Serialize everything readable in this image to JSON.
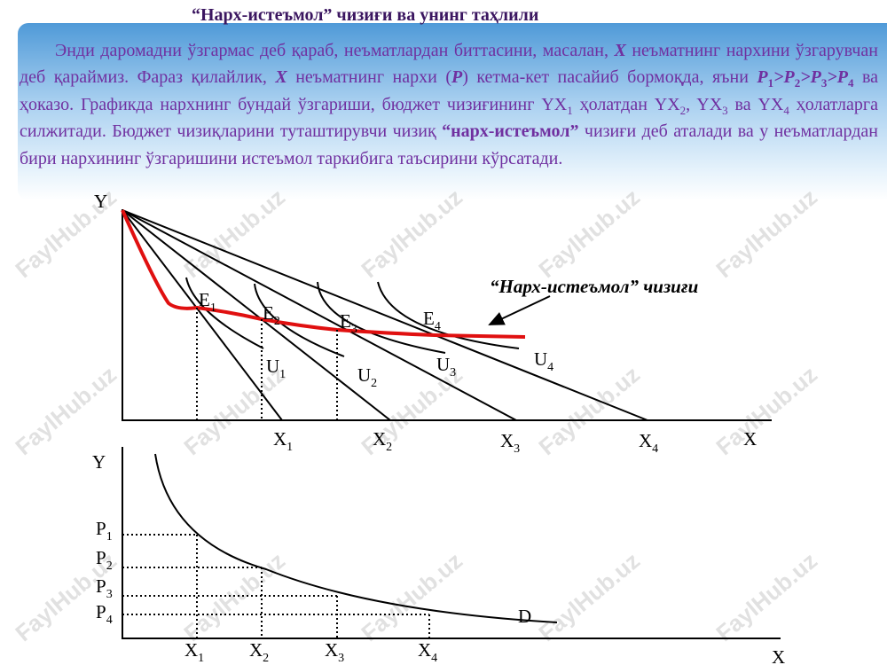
{
  "header": {
    "title": "“Нарх-истеъмол” чизиғи ва унинг таҳлили"
  },
  "paragraph": {
    "runs": [
      "Энди даромадни ўзгармас деб қараб, неъматлардан биттасини, масалан, ",
      "X",
      " неъматнинг нархини ўзгарувчан деб қараймиз. Фараз қилайлик, ",
      "X",
      " неъматнинг нархи (",
      "P",
      ") кетма-кет пасайиб бормоқда, яъни ",
      "P",
      "1",
      ">P",
      "2",
      ">P",
      "3",
      ">P",
      "4",
      " ва ҳоказо. Графикда нархнинг бундай ўзгариши, бюджет чизиғининг YX",
      "1",
      " ҳолатдан YX",
      "2",
      ", YX",
      "3",
      " ва YX",
      "4",
      " ҳолатларга силжитади. Бюджет чизиқларини туташтирувчи чизиқ ",
      "“нарх-истеъмол”",
      " чизиғи деб аталади ва у неъматлардан бири нархининг ўзгаришини истеъмол таркибига таъсирини кўрсатади."
    ]
  },
  "upper_graph": {
    "y_axis_label": "Y",
    "x_axis_label": "X",
    "equilibria": [
      {
        "base": "E",
        "sub": "1"
      },
      {
        "base": "E",
        "sub": "2"
      },
      {
        "base": "E",
        "sub": "3"
      },
      {
        "base": "E",
        "sub": "4"
      }
    ],
    "curves": [
      {
        "base": "U",
        "sub": "1"
      },
      {
        "base": "U",
        "sub": "2"
      },
      {
        "base": "U",
        "sub": "3"
      },
      {
        "base": "U",
        "sub": "4"
      }
    ],
    "intercepts": [
      {
        "base": "X",
        "sub": "1"
      },
      {
        "base": "X",
        "sub": "2"
      },
      {
        "base": "X",
        "sub": "3"
      },
      {
        "base": "X",
        "sub": "4"
      }
    ],
    "annotation": "“Нарх-истеъмол” чизиғи"
  },
  "lower_graph": {
    "y_axis_label": "Y",
    "x_axis_label": "X",
    "curve_label": "D",
    "prices": [
      {
        "base": "P",
        "sub": "1"
      },
      {
        "base": "P",
        "sub": "2"
      },
      {
        "base": "P",
        "sub": "3"
      },
      {
        "base": "P",
        "sub": "4"
      }
    ],
    "quantities": [
      {
        "base": "X",
        "sub": "1"
      },
      {
        "base": "X",
        "sub": "2"
      },
      {
        "base": "X",
        "sub": "3"
      },
      {
        "base": "X",
        "sub": "4"
      }
    ]
  },
  "watermark": "FaylHub.uz"
}
